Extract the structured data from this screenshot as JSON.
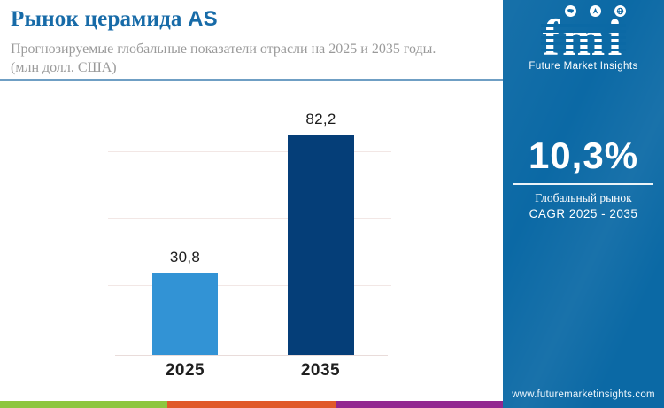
{
  "header": {
    "title": "Рынок церамида",
    "title_suffix": "AS",
    "subtitle_line1": "Прогнозируемые глобальные показатели отрасли на 2025 и 2035 годы.",
    "subtitle_line2": "(млн долл. США)"
  },
  "chart_data": {
    "type": "bar",
    "title": "Рынок церамида AS",
    "subtitle": "Прогнозируемые глобальные показатели отрасли на 2025 и 2035 годы. (млн долл. США)",
    "categories": [
      "2025",
      "2035"
    ],
    "values": [
      30.8,
      82.2
    ],
    "value_labels": [
      "30,8",
      "82,2"
    ],
    "units": "млн долл. США",
    "xlabel": "",
    "ylabel": "",
    "ylim": [
      0,
      96
    ],
    "grid": "horizontal, light, unlabeled (≈25/50/75)",
    "legend": "none",
    "bar_colors": [
      "#3293d5",
      "#053e78"
    ]
  },
  "sidebar": {
    "background": "#0b69a5",
    "logo": {
      "text": "fmi",
      "tagline": "Future Market Insights",
      "icons": [
        "usa-map-icon",
        "compass-icon",
        "globe-icon"
      ]
    },
    "cagr_value": "10,3%",
    "cagr_label_line1": "Глобальный рынок",
    "cagr_label_line2": "CAGR 2025 - 2035",
    "website": "www.futuremarketinsights.com"
  },
  "footer": {
    "stripe_colors": [
      "#8dc63f",
      "#e0592a",
      "#92278f"
    ]
  }
}
